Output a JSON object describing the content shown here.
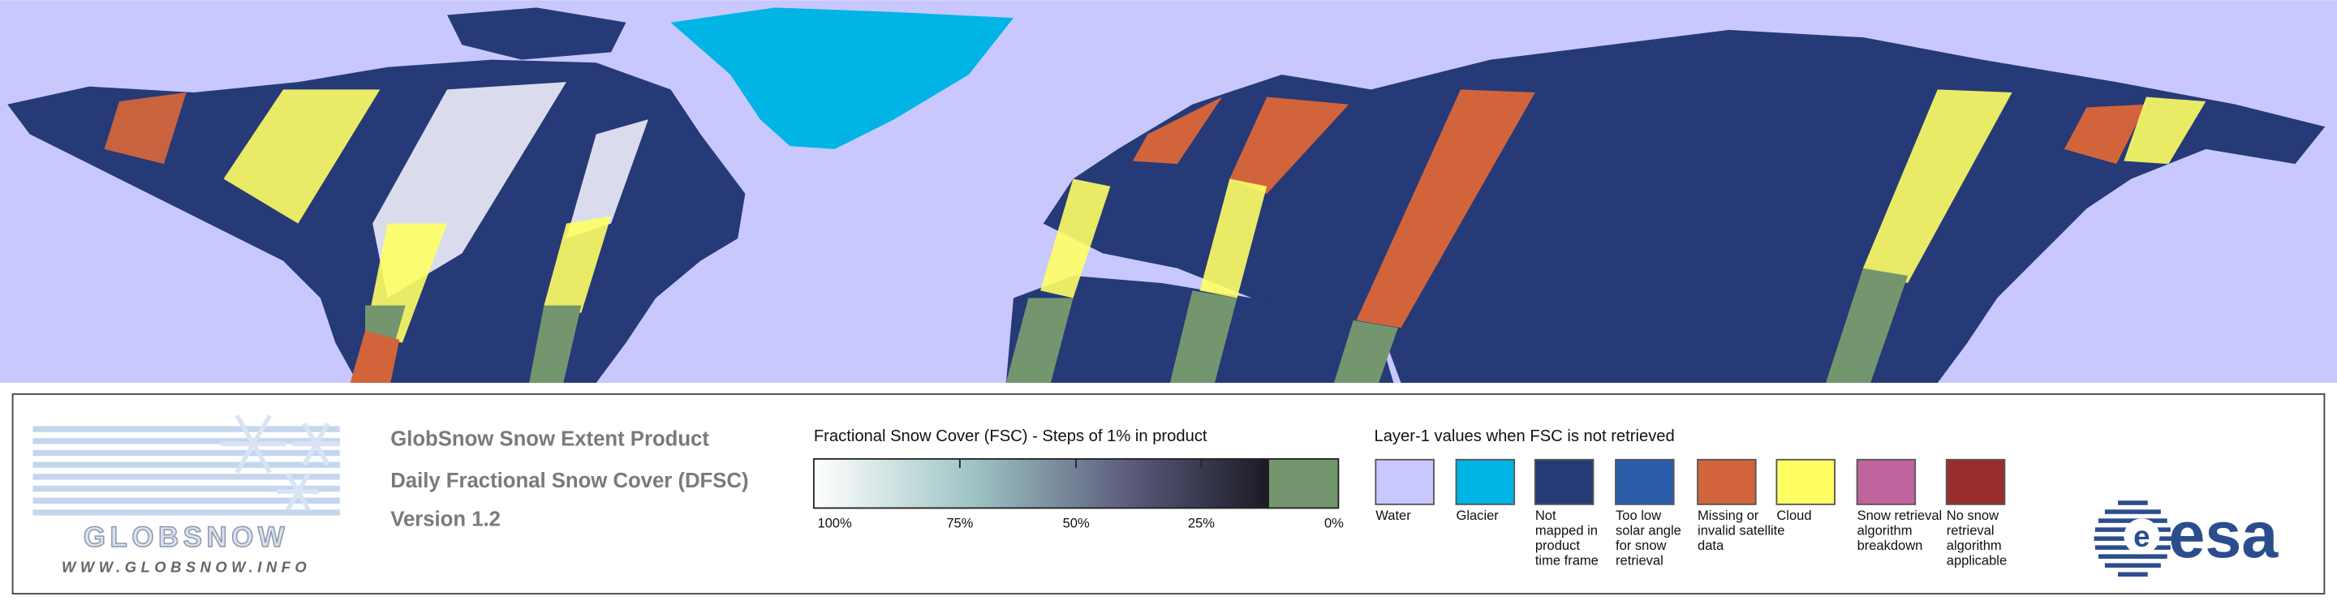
{
  "logo": {
    "name": "GLOBSNOW",
    "url": "WWW.GLOBSNOW.INFO"
  },
  "header": {
    "title": "GlobSnow Snow Extent Product",
    "subtitle": "Daily Fractional Snow Cover (DFSC)",
    "version": "Version 1.2"
  },
  "colorbar": {
    "title": "Fractional Snow Cover (FSC) - Steps of 1% in product",
    "labels": [
      "100%",
      "75%",
      "50%",
      "25%",
      "0%"
    ]
  },
  "layer1": {
    "title": "Layer-1 values when FSC is not retrieved",
    "items": [
      {
        "color": "#c8c8ff",
        "label": [
          "Water"
        ]
      },
      {
        "color": "#00b4e6",
        "label": [
          "Glacier"
        ]
      },
      {
        "color": "#263a78",
        "label": [
          "Not",
          "mapped in",
          "product",
          "time frame"
        ]
      },
      {
        "color": "#2a5caa",
        "label": [
          "Too low",
          "solar angle",
          "for snow",
          "retrieval"
        ]
      },
      {
        "color": "#d2643c",
        "label": [
          "Missing or",
          "invalid satellite",
          "data"
        ]
      },
      {
        "color": "#ffff64",
        "label": [
          "Cloud"
        ]
      },
      {
        "color": "#c0649e",
        "label": [
          "Snow retrieval",
          "algorithm",
          "breakdown"
        ]
      },
      {
        "color": "#9b2d2d",
        "label": [
          "No snow",
          "retrieval",
          "algorithm",
          "applicable"
        ]
      }
    ]
  },
  "agency": "esa"
}
